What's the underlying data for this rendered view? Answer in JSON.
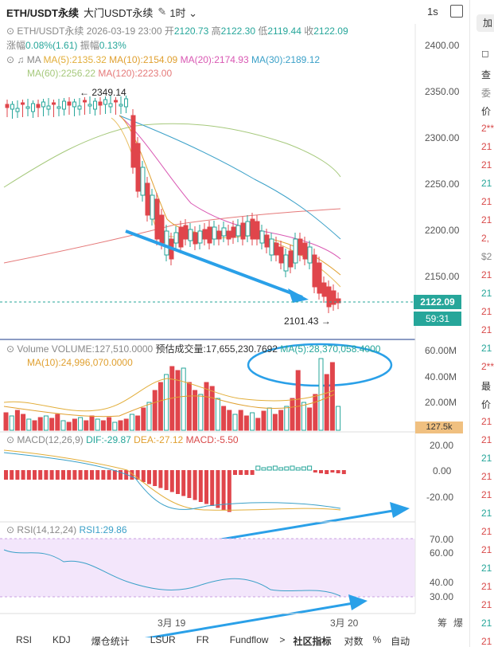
{
  "header": {
    "symbol": "ETH/USDT永续",
    "gate": "大门USDT永续",
    "edit_icon": "edit-icon",
    "timeframe": "1时",
    "interval_right": "1s"
  },
  "ohlc": {
    "label": "ETH/USDT永续",
    "datetime": "2026-03-19 23:00",
    "open_label": "开",
    "open": "2120.73",
    "high_label": "高",
    "high": "2122.30",
    "low_label": "低",
    "low": "2119.44",
    "close_label": "收",
    "close": "2122.09",
    "change_label": "涨幅",
    "change": "0.08%(1.61)",
    "amp_label": "振幅",
    "amp": "0.13%"
  },
  "ma": {
    "label": "MA",
    "ma5": "MA(5):2135.32",
    "ma10": "MA(10):2154.09",
    "ma20": "MA(20):2174.93",
    "ma30": "MA(30):2189.12",
    "ma60": "MA(60):2256.22",
    "ma120": "MA(120):2223.00",
    "colors": {
      "ma5": "#e2ae3a",
      "ma10": "#e2ae3a",
      "ma20": "#d958b3",
      "ma30": "#3aa0c8",
      "ma60": "#a6c97c",
      "ma120": "#e57a7a"
    }
  },
  "price_axis": [
    "2400.00",
    "2350.00",
    "2300.00",
    "2250.00",
    "2200.00",
    "2150.00"
  ],
  "annotations": {
    "high_mark": "← 2349.14",
    "low_mark": "2101.43 →",
    "current_price": "2122.09",
    "countdown": "59:31"
  },
  "volume": {
    "label": "Volume",
    "volume": "VOLUME:127,510.0000",
    "est": "预估成交量:17,655,230.7692",
    "ma5": "MA(5):28,370,058.4000",
    "ma10": "MA(10):24,996,070.0000",
    "axis": [
      "60.00M",
      "40.00M",
      "20.00M"
    ],
    "current": "127.5k"
  },
  "macd": {
    "label": "MACD(12,26,9)",
    "dif": "DIF:-29.87",
    "dea": "DEA:-27.12",
    "macd": "MACD:-5.50",
    "axis": [
      "20.00",
      "0.00",
      "-20.00"
    ]
  },
  "rsi": {
    "label": "RSI(14,12,24)",
    "rsi1": "RSI1:29.86",
    "axis": [
      "70.00",
      "60.00",
      "40.00",
      "30.00"
    ]
  },
  "time_axis": {
    "d1": "3月 19",
    "d2": "3月 20"
  },
  "side_labels": {
    "a": "筹",
    "b": "爆"
  },
  "bottom_tabs": [
    "RSI",
    "KDJ",
    "爆仓统计",
    "LSUR",
    "FR",
    "Fundflow",
    ">",
    "社区指标",
    "对数",
    "%",
    "自动"
  ],
  "right_panel": {
    "top": "加",
    "items": [
      "查",
      "委",
      "价",
      "2**",
      "21",
      "21",
      "21",
      "21",
      "21",
      "2,",
      "$2",
      "21",
      "21",
      "21",
      "21",
      "21",
      "2**",
      "最",
      "价",
      "21",
      "21",
      "21",
      "21",
      "21",
      "21",
      "21",
      "21",
      "21",
      "21",
      "21",
      "21",
      "21"
    ]
  }
}
